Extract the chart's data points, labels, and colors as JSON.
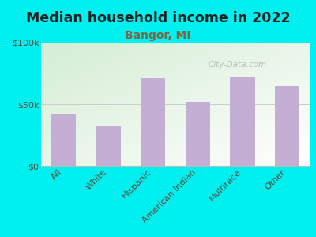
{
  "title": "Median household income in 2022",
  "subtitle": "Bangor, MI",
  "categories": [
    "All",
    "White",
    "Hispanic",
    "American Indian",
    "Multirace",
    "Other"
  ],
  "values": [
    42000,
    33000,
    71000,
    52000,
    72000,
    65000
  ],
  "bar_color": "#c4aed4",
  "background_color": "#00f0f0",
  "plot_bg_left": "#d4ecd4",
  "plot_bg_right": "#f0f8f0",
  "title_color": "#222222",
  "subtitle_color": "#7a6644",
  "tick_color": "#5a4a3a",
  "ylim": [
    0,
    100000
  ],
  "yticks": [
    0,
    50000,
    100000
  ],
  "ytick_labels": [
    "$0",
    "$50k",
    "$100k"
  ],
  "watermark": "City-Data.com",
  "title_fontsize": 12.5,
  "subtitle_fontsize": 10,
  "tick_fontsize": 8
}
